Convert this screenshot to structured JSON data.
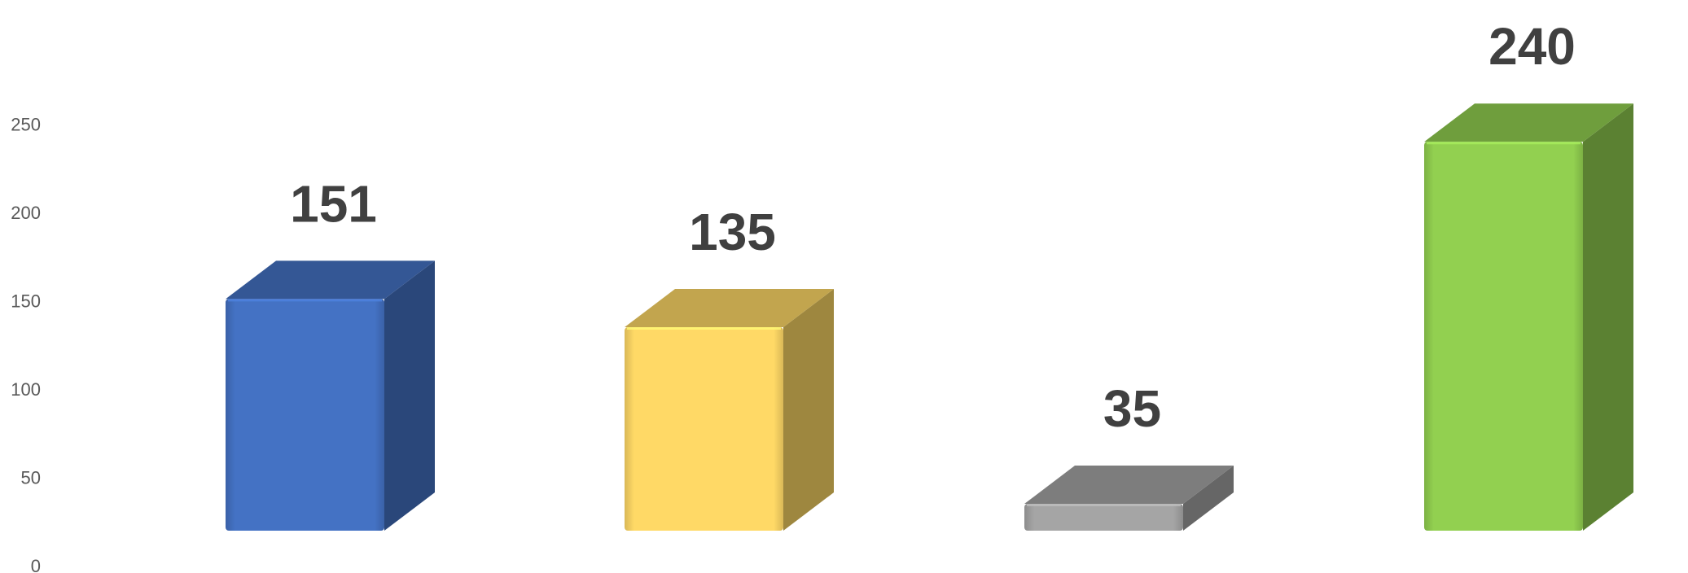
{
  "chart_data": {
    "type": "bar",
    "style": "3d-column",
    "categories": [
      "",
      "",
      "",
      ""
    ],
    "values": [
      151,
      135,
      35,
      240
    ],
    "colors": [
      "#4472C4",
      "#FFD966",
      "#A5A5A5",
      "#92D050"
    ],
    "data_labels": [
      "151",
      "135",
      "35",
      "240"
    ],
    "yticks": [
      0,
      50,
      100,
      150,
      200,
      250
    ],
    "ytick_labels": [
      "0",
      "50",
      "100",
      "150",
      "200",
      "250"
    ],
    "ylim": [
      0,
      250
    ],
    "grid": false,
    "legend": "none",
    "title": "",
    "xlabel": "",
    "ylabel": ""
  }
}
